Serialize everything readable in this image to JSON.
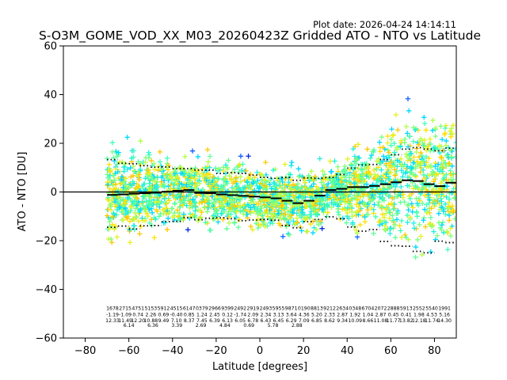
{
  "chart_data": {
    "type": "scatter",
    "title": "S-O3M_GOME_VOD_XX_M03_20260423Z Gridded ATO - NTO vs Latitude",
    "subtitle": "Plot date: 2026-04-24 14:14:11",
    "xlabel": "Latitude [degrees]",
    "ylabel": "ATO - NTO [DU]",
    "xlim": [
      -90,
      90
    ],
    "ylim": [
      -60,
      60
    ],
    "xticks": [
      -80,
      -60,
      -40,
      -20,
      0,
      20,
      40,
      60,
      80
    ],
    "yticks": [
      -60,
      -40,
      -20,
      0,
      20,
      40,
      60
    ],
    "zero_line": 0,
    "colors": {
      "scatter": [
        "#00d8ff",
        "#1cf0e0",
        "#40ffb8",
        "#60ff98",
        "#7dff7a",
        "#b0ff48",
        "#e8f020",
        "#ffe000",
        "#ffc800",
        "#0828e8",
        "#1060ff"
      ],
      "line": "#000000"
    },
    "bins_lat": [
      -67.5,
      -62.5,
      -57.5,
      -52.5,
      -47.5,
      -42.5,
      -37.5,
      -32.5,
      -27.5,
      -22.5,
      -17.5,
      -12.5,
      -7.5,
      -2.5,
      2.5,
      7.5,
      12.5,
      17.5,
      22.5,
      27.5,
      32.5,
      37.5,
      42.5,
      47.5,
      52.5,
      57.5,
      62.5,
      67.5,
      72.5,
      77.5,
      82.5,
      87.5
    ],
    "mean_diff": [
      -1.2,
      -1.0,
      -0.7,
      -0.5,
      -0.3,
      0.1,
      0.5,
      0.8,
      -0.4,
      -0.5,
      -1.0,
      -1.3,
      -1.6,
      -1.9,
      -2.2,
      -2.6,
      -3.6,
      -4.6,
      -3.6,
      -1.5,
      0.8,
      1.3,
      2.0,
      2.0,
      2.5,
      3.2,
      4.0,
      4.8,
      4.5,
      3.2,
      2.4,
      3.8
    ],
    "std_upper": [
      13.3,
      11.8,
      11.6,
      10.8,
      10.2,
      10.3,
      9.6,
      9.6,
      9.0,
      9.0,
      7.6,
      7.9,
      7.6,
      6.9,
      6.0,
      5.6,
      6.0,
      4.8,
      5.8,
      5.6,
      6.0,
      7.2,
      9.8,
      11.1,
      11.3,
      13.3,
      15.3,
      17.6,
      18.2,
      17.6,
      16.9,
      18.0
    ],
    "std_lower": [
      -14.5,
      -14.0,
      -15.2,
      -13.9,
      -13.8,
      -12.2,
      -12.1,
      -10.5,
      -11.4,
      -10.8,
      -10.6,
      -11.0,
      -11.8,
      -11.5,
      -11.3,
      -11.6,
      -13.8,
      -14.7,
      -12.2,
      -11.3,
      -10.2,
      -11.0,
      -14.4,
      -16.1,
      -15.4,
      -20.3,
      -22.1,
      -22.3,
      -24.4,
      -25.0,
      -20.2,
      -20.8
    ],
    "stat_labels": {
      "count": [
        "1678",
        "2715",
        "4751",
        "5153",
        "5912",
        "4515",
        "6147",
        "0379",
        "2966",
        "9399",
        "2492",
        "2919",
        "2493",
        "5955",
        "9871",
        "0190",
        "8813",
        "9212",
        "2634",
        "0348",
        "6704",
        "2072",
        "2888",
        "5913",
        "2552",
        "5540",
        "1991"
      ],
      "mean": [
        "-1.19",
        "-1.09",
        "0.74",
        "2.26",
        "0.69",
        "-0.40",
        "0.85",
        "1.24",
        "2.45",
        "0.12",
        "-1.74",
        "2.09",
        "2.34",
        "3.13",
        "3.64",
        "4.36",
        "5.20",
        "2.33",
        "2.87",
        "1.92",
        "1.04",
        "2.87",
        "0.45",
        "0.41",
        "1.98",
        "4.53",
        "5.16"
      ],
      "std": [
        "12.33",
        "11.49",
        "12.20",
        "10.88",
        "9.49",
        "7.10",
        "8.37",
        "7.45",
        "6.39",
        "6.13",
        "6.05",
        "6.78",
        "6.43",
        "6.45",
        "6.29",
        "7.09",
        "6.85",
        "8.62",
        "9.34",
        "10.09",
        "8.66",
        "11.08",
        "11.77",
        "13.82",
        "12.18",
        "11.74",
        "14.30"
      ],
      "extra": [
        "6.14",
        "6.36",
        "3.39",
        "2.69",
        "4.84",
        "0.69",
        "5.78",
        "2.88"
      ]
    }
  }
}
